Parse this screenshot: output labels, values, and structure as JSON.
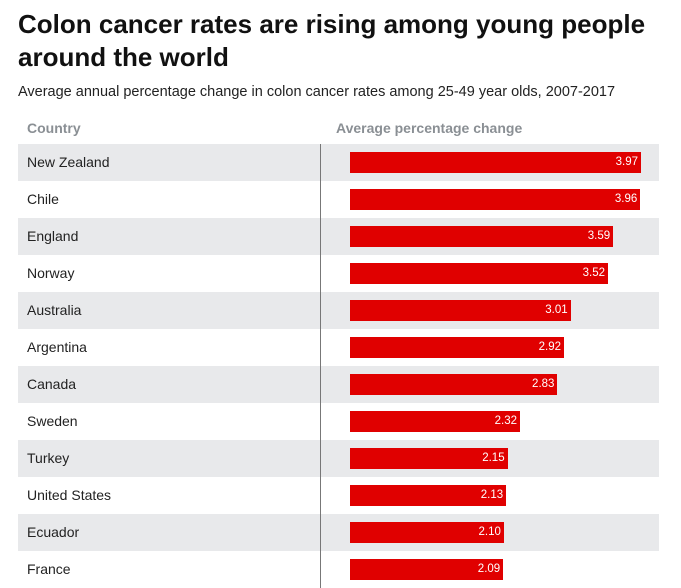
{
  "title": "Colon cancer rates are rising among young people around the world",
  "subtitle": "Average annual percentage change in colon cancer rates among 25-49 year olds, 2007-2017",
  "columns": {
    "country": "Country",
    "change": "Average percentage change"
  },
  "colors": {
    "bar": "#e00000",
    "row_shade": "#e8e9eb",
    "header_text": "#8a8f94"
  },
  "chart_data": {
    "type": "bar",
    "orientation": "horizontal",
    "title": "Colon cancer rates are rising among young people around the world",
    "subtitle": "Average annual percentage change in colon cancer rates among 25-49 year olds, 2007-2017",
    "xlabel": "Average percentage change",
    "ylabel": "Country",
    "xlim": [
      0,
      4.25
    ],
    "grid": false,
    "categories": [
      "New Zealand",
      "Chile",
      "England",
      "Norway",
      "Australia",
      "Argentina",
      "Canada",
      "Sweden",
      "Turkey",
      "United States",
      "Ecuador",
      "France"
    ],
    "values": [
      3.97,
      3.96,
      3.59,
      3.52,
      3.01,
      2.92,
      2.83,
      2.32,
      2.15,
      2.13,
      2.1,
      2.09
    ],
    "value_labels": [
      "3.97",
      "3.96",
      "3.59",
      "3.52",
      "3.01",
      "2.92",
      "2.83",
      "2.32",
      "2.15",
      "2.13",
      "2.10",
      "2.09"
    ]
  }
}
